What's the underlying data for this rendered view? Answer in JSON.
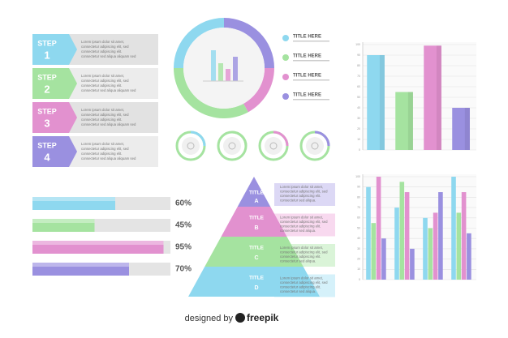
{
  "steps": [
    {
      "label": "STEP",
      "number": "1",
      "text": [
        "Lorem ipsum dolor sit amet,",
        "consectetur adipiscing elit, sed",
        "consectetur adipiscing elit.",
        "consectetur sed aliqua aliquam sed"
      ]
    },
    {
      "label": "STEP",
      "number": "2",
      "text": [
        "Lorem ipsum dolor sit amet,",
        "consectetur adipiscing elit, sed",
        "consectetur adipiscing elit.",
        "consectetur sed aliqua aliquam sed"
      ]
    },
    {
      "label": "STEP",
      "number": "3",
      "text": [
        "Lorem ipsum dolor sit amet,",
        "consectetur adipiscing elit, sed",
        "consectetur adipiscing elit.",
        "consectetur sed aliqua aliquam sed"
      ]
    },
    {
      "label": "STEP",
      "number": "4",
      "text": [
        "Lorem ipsum dolor sit amet,",
        "consectetur adipiscing elit, sed",
        "consectetur adipiscing elit.",
        "consectetur sed aliqua aliquam sed"
      ]
    }
  ],
  "step_colors": [
    "#8ed8ef",
    "#a5e3a0",
    "#e291cf",
    "#9a90e0"
  ],
  "donut": {
    "values": [
      25,
      17,
      33,
      25
    ],
    "colors": [
      "#9a90e0",
      "#e291cf",
      "#a5e3a0",
      "#8ed8ef"
    ]
  },
  "legend": [
    {
      "label": "TITLE HERE",
      "color": "#8ed8ef"
    },
    {
      "label": "TITLE HERE",
      "color": "#a5e3a0"
    },
    {
      "label": "TITLE HERE",
      "color": "#e291cf"
    },
    {
      "label": "TITLE HERE",
      "color": "#9a90e0"
    }
  ],
  "progress": [
    {
      "value": 60,
      "label": "60%",
      "color": "#8ed8ef"
    },
    {
      "value": 45,
      "label": "45%",
      "color": "#a5e3a0"
    },
    {
      "value": 95,
      "label": "95%",
      "color": "#e291cf"
    },
    {
      "value": 70,
      "label": "70%",
      "color": "#9a90e0"
    }
  ],
  "pyramid": [
    {
      "title": "TITLE",
      "letter": "A",
      "color": "#9a90e0",
      "box": "#dcd8f5",
      "text": [
        "Lorem ipsum dolor sit amet,",
        "consectetur adipiscing elit, sed",
        "consectetur adipiscing elit.",
        "consectetur sed aliqua."
      ]
    },
    {
      "title": "TITLE",
      "letter": "B",
      "color": "#e291cf",
      "box": "#f8d9ef",
      "text": [
        "Lorem ipsum dolor sit amet,",
        "consectetur adipiscing elit, sed",
        "consectetur adipiscing elit.",
        "consectetur sed aliqua."
      ]
    },
    {
      "title": "TITLE",
      "letter": "C",
      "color": "#a5e3a0",
      "box": "#daf4d8",
      "text": [
        "Lorem ipsum dolor sit amet,",
        "consectetur adipiscing elit, sed",
        "consectetur adipiscing elit.",
        "consectetur sed aliqua."
      ]
    },
    {
      "title": "TITLE",
      "letter": "D",
      "color": "#8ed8ef",
      "box": "#d5f1fa",
      "text": [
        "Lorem ipsum dolor sit amet,",
        "consectetur adipiscing elit, sed",
        "consectetur adipiscing elit.",
        "consectetur sed aliqua."
      ]
    }
  ],
  "chart_data": [
    {
      "type": "bar",
      "categories": [
        null,
        null,
        null,
        null
      ],
      "values": [
        90,
        55,
        99,
        40
      ],
      "colors": [
        "#8ed8ef",
        "#a5e3a0",
        "#e291cf",
        "#9a90e0"
      ],
      "ylim": [
        0,
        100
      ],
      "yticks": [
        0,
        10,
        20,
        30,
        40,
        50,
        60,
        70,
        80,
        90,
        100
      ],
      "grid": true
    },
    {
      "type": "grouped_bar",
      "categories": [
        null,
        null,
        null,
        null
      ],
      "series": [
        {
          "color": "#8ed8ef",
          "values": [
            90,
            70,
            60,
            100
          ]
        },
        {
          "color": "#a5e3a0",
          "values": [
            55,
            95,
            50,
            65
          ]
        },
        {
          "color": "#e291cf",
          "values": [
            100,
            85,
            65,
            85
          ]
        },
        {
          "color": "#9a90e0",
          "values": [
            40,
            30,
            85,
            45
          ]
        }
      ],
      "ylim": [
        0,
        100
      ],
      "yticks": [
        0,
        10,
        20,
        30,
        40,
        50,
        60,
        70,
        80,
        90,
        100
      ],
      "grid": true
    }
  ],
  "footer": {
    "prefix": "designed by",
    "brand": "freepik"
  }
}
